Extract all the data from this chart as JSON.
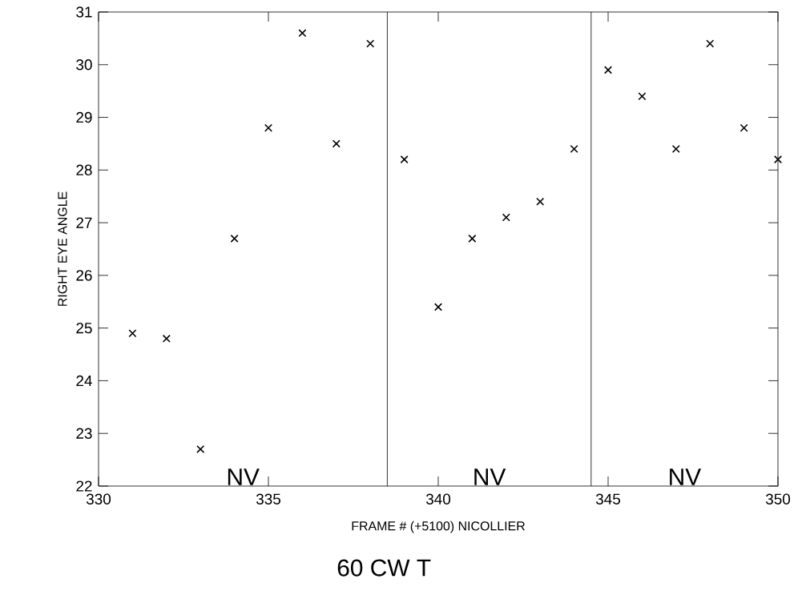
{
  "chart_data": {
    "type": "scatter",
    "xlabel": "FRAME #  (+5100)  NICOLLIER",
    "ylabel": "RIGHT EYE ANGLE",
    "x": [
      331,
      332,
      333,
      334,
      335,
      336,
      337,
      338,
      339,
      340,
      341,
      342,
      343,
      344,
      345,
      346,
      347,
      348,
      349,
      350
    ],
    "series": [
      {
        "color": "#000000",
        "values": [
          24.9,
          24.8,
          22.7,
          26.7,
          28.8,
          30.6,
          28.5,
          30.4,
          28.2,
          25.4,
          26.7,
          27.1,
          27.4,
          28.4,
          29.9,
          29.4,
          28.4,
          30.4,
          28.8,
          28.2
        ]
      }
    ],
    "xlim": [
      330,
      350
    ],
    "xticks": [
      330,
      335,
      340,
      345,
      350
    ],
    "ylim": [
      22,
      31
    ],
    "yticks": [
      22,
      23,
      24,
      25,
      26,
      27,
      28,
      29,
      30,
      31
    ],
    "ref_lines": [
      {
        "axis": "x",
        "value": 338.5,
        "color": "#000000"
      },
      {
        "axis": "x",
        "value": 344.5,
        "color": "#000000"
      }
    ],
    "annotations": [
      "NV",
      "NV",
      "NV",
      "60 CW  T"
    ],
    "marker": "cross",
    "grid": false
  }
}
